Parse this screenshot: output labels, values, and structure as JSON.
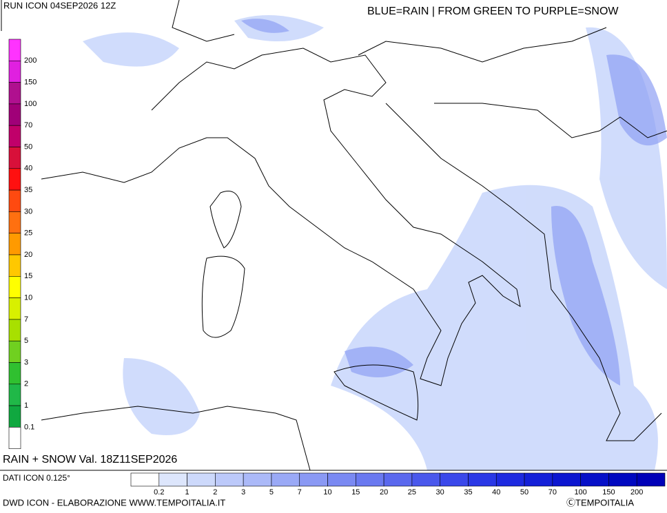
{
  "header": {
    "run": "RUN ICON 04SEP2026 12Z",
    "legend_note": "BLUE=RAIN | FROM GREEN TO PURPLE=SNOW"
  },
  "map": {
    "valid": "RAIN + SNOW Val. 18Z11SEP2026"
  },
  "snow_scale": {
    "labels": [
      "200",
      "150",
      "100",
      "70",
      "50",
      "40",
      "35",
      "30",
      "25",
      "20",
      "15",
      "10",
      "7",
      "5",
      "3",
      "2",
      "1",
      "0.1"
    ],
    "colors": [
      "#ff33ff",
      "#e020e0",
      "#b0108f",
      "#a00078",
      "#c0006a",
      "#d8103a",
      "#ff1010",
      "#ff4a10",
      "#ff7010",
      "#ff9a00",
      "#ffc800",
      "#ffff00",
      "#d8f000",
      "#a8e000",
      "#70d020",
      "#30c030",
      "#20b848",
      "#10a840",
      "#ffffff"
    ]
  },
  "rain_scale": {
    "labels": [
      "0.2",
      "1",
      "2",
      "3",
      "5",
      "7",
      "10",
      "15",
      "20",
      "25",
      "30",
      "35",
      "40",
      "50",
      "70",
      "100",
      "150",
      "200"
    ],
    "colors": [
      "#ffffff",
      "#dde6fc",
      "#cdd9fb",
      "#bcc9fa",
      "#abb9f8",
      "#9aa9f6",
      "#8a99f4",
      "#7a89f2",
      "#6a79f0",
      "#5a68ee",
      "#4a58ec",
      "#3a48ea",
      "#2a38e6",
      "#1e2ae0",
      "#1420d8",
      "#0c16d0",
      "#0610c8",
      "#0008c0",
      "#0000b8"
    ]
  },
  "footer": {
    "data_source": "DATI ICON 0.125°",
    "credits": "DWD ICON - ELABORAZIONE WWW.TEMPOITALIA.IT",
    "copyright": "ⒸTEMPOITALIA"
  }
}
